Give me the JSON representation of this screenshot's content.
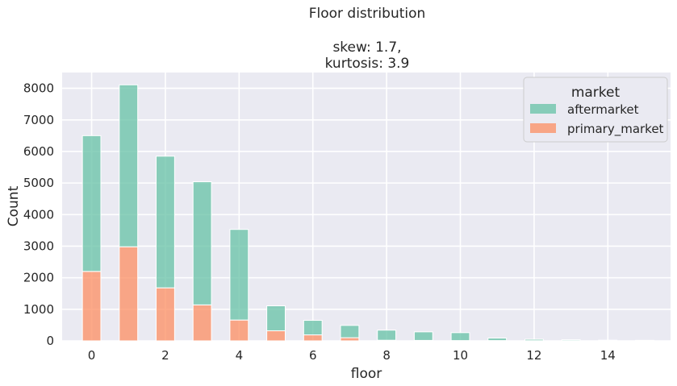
{
  "chart_data": {
    "type": "bar",
    "stacked": true,
    "title": "Floor distribution",
    "subtitle_lines": [
      "skew: 1.7,",
      "kurtosis: 3.9"
    ],
    "xlabel": "floor",
    "ylabel": "Count",
    "xlim": [
      -0.8,
      15.7
    ],
    "ylim": [
      0,
      8500
    ],
    "x_ticks": [
      0,
      2,
      4,
      6,
      8,
      10,
      12,
      14
    ],
    "y_ticks": [
      0,
      1000,
      2000,
      3000,
      4000,
      5000,
      6000,
      7000,
      8000
    ],
    "grid": true,
    "legend": {
      "title": "market",
      "placement": "top-right"
    },
    "categories": [
      0,
      1,
      2,
      3,
      4,
      5,
      6,
      7,
      8,
      9,
      10,
      11,
      12,
      13,
      14,
      15
    ],
    "series": [
      {
        "name": "aftermarket",
        "color": "#66c2a5",
        "values": [
          4300,
          5130,
          4170,
          3900,
          2870,
          790,
          460,
          390,
          320,
          270,
          250,
          80,
          45,
          30,
          20,
          15
        ]
      },
      {
        "name": "primary_market",
        "color": "#fc8d62",
        "values": [
          2200,
          2980,
          1680,
          1140,
          660,
          320,
          190,
          100,
          20,
          15,
          10,
          10,
          5,
          5,
          3,
          2
        ]
      }
    ]
  }
}
